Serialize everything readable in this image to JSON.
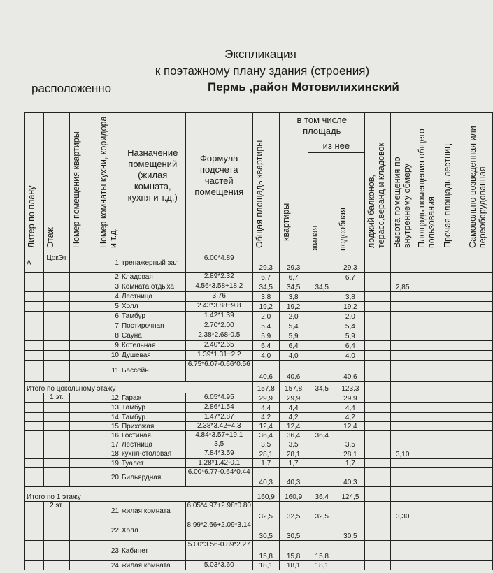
{
  "header": {
    "title": "Экспликация",
    "subtitle": "к поэтажному плану здания (строения)",
    "location_label": "расположенно",
    "location_value": "Пермь ,район Мотовилихинский"
  },
  "columns": {
    "litera": "Литер по плану",
    "floor": "Этаж",
    "apt_no": "Номер помещения квартиры",
    "room_no": "Номер комнаты кухни, коридора и т.д.",
    "purpose": "Назначение помещений (жилая комната, кухня и т.д.)",
    "formula": "Формула подсчета частей помещения",
    "total": "Общая площадь квартиры",
    "incl": "в том числе площадь",
    "apt": "квартиры",
    "of_which": "из нее",
    "living": "жилая",
    "aux": "подсобная",
    "loggia": "лоджий балконов, терасс,веранд и кладовок",
    "height": "Высота помещения по внутреннему обмеру",
    "common": "Площадь помещения общего пользования",
    "other": "Прочая площадь лестниц",
    "self_built": "Самовольно возведенная или переоборудованная"
  },
  "rows": [
    {
      "litera": "А",
      "floor": "ЦокЭт",
      "no": "1",
      "name": "тренажерный зал",
      "formula": "6.00*4.89",
      "total": "29,3",
      "apt": "29,3",
      "living": "",
      "aux": "29,3",
      "height": "",
      "h": 26
    },
    {
      "no": "2",
      "name": "Кладовая",
      "formula": "2.89*2.32",
      "total": "6,7",
      "apt": "6,7",
      "living": "",
      "aux": "6,7",
      "height": "",
      "h": 14
    },
    {
      "no": "3",
      "name": "Комната отдыха",
      "formula": "4.56*3.58+18.2",
      "total": "34,5",
      "apt": "34,5",
      "living": "34,5",
      "aux": "",
      "height": "2,85",
      "h": 14
    },
    {
      "no": "4",
      "name": "Лестница",
      "formula": "3,76",
      "total": "3,8",
      "apt": "3,8",
      "living": "",
      "aux": "3,8",
      "height": "",
      "h": 14
    },
    {
      "no": "5",
      "name": "Холл",
      "formula": "2.43*3.88+9.8",
      "total": "19,2",
      "apt": "19,2",
      "living": "",
      "aux": "19,2",
      "height": "",
      "h": 14
    },
    {
      "no": "6",
      "name": "Тамбур",
      "formula": "1.42*1.39",
      "total": "2,0",
      "apt": "2,0",
      "living": "",
      "aux": "2,0",
      "height": "",
      "h": 14
    },
    {
      "no": "7",
      "name": "Постирочная",
      "formula": "2.70*2.00",
      "total": "5,4",
      "apt": "5,4",
      "living": "",
      "aux": "5,4",
      "height": "",
      "h": 14
    },
    {
      "no": "8",
      "name": "Сауна",
      "formula": "2.38*2.68-0.5",
      "total": "5,9",
      "apt": "5,9",
      "living": "",
      "aux": "5,9",
      "height": "",
      "h": 14
    },
    {
      "no": "9",
      "name": "Котельная",
      "formula": "2.40*2.65",
      "total": "6,4",
      "apt": "6,4",
      "living": "",
      "aux": "6,4",
      "height": "",
      "h": 14
    },
    {
      "no": "10",
      "name": "Душевая",
      "formula": "1.39*1.31+2.2",
      "total": "4,0",
      "apt": "4,0",
      "living": "",
      "aux": "4,0",
      "height": "",
      "h": 14
    },
    {
      "no": "11",
      "name": "Бассейн",
      "formula": "6.75*6.07-0.66*0.56",
      "total": "40,6",
      "apt": "40,6",
      "living": "",
      "aux": "40,6",
      "height": "",
      "h": 30
    },
    {
      "total_label": "Итого по цокольному этажу",
      "total": "157,8",
      "apt": "157,8",
      "living": "34,5",
      "aux": "123,3",
      "h": 17
    },
    {
      "floor": "1 эт.",
      "no": "12",
      "name": "Гараж",
      "formula": "6.05*4.95",
      "total": "29,9",
      "apt": "29,9",
      "living": "",
      "aux": "29,9",
      "height": "",
      "h": 14
    },
    {
      "no": "13",
      "name": "Тамбур",
      "formula": "2.86*1.54",
      "total": "4,4",
      "apt": "4,4",
      "living": "",
      "aux": "4,4",
      "height": "",
      "h": 14
    },
    {
      "no": "14",
      "name": "Тамбур",
      "formula": "1.47*2.87",
      "total": "4,2",
      "apt": "4,2",
      "living": "",
      "aux": "4,2",
      "height": "",
      "h": 13
    },
    {
      "no": "15",
      "name": "Прихожая",
      "formula": "2.38*3.42+4.3",
      "total": "12,4",
      "apt": "12,4",
      "living": "",
      "aux": "12,4",
      "height": "",
      "h": 13
    },
    {
      "no": "16",
      "name": "Гостиная",
      "formula": "4.84*3.57+19.1",
      "total": "36,4",
      "apt": "36,4",
      "living": "36,4",
      "aux": "",
      "height": "",
      "h": 13
    },
    {
      "no": "17",
      "name": "Лестница",
      "formula": "3,5",
      "total": "3,5",
      "apt": "3,5",
      "living": "",
      "aux": "3,5",
      "height": "",
      "h": 13
    },
    {
      "no": "18",
      "name": "кухня-столовая",
      "formula": "7.84*3.59",
      "total": "28,1",
      "apt": "28,1",
      "living": "",
      "aux": "28,1",
      "height": "3,10",
      "h": 14
    },
    {
      "no": "19",
      "name": "Туалет",
      "formula": "1.28*1.42-0.1",
      "total": "1,7",
      "apt": "1,7",
      "living": "",
      "aux": "1,7",
      "height": "",
      "h": 13
    },
    {
      "no": "20",
      "name": "Бильярдная",
      "formula": "6.00*6.77-0.64*0.44",
      "total": "40,3",
      "apt": "40,3",
      "living": "",
      "aux": "40,3",
      "height": "",
      "h": 27
    },
    {
      "total_label": "Итого по 1 этажу",
      "total": "160,9",
      "apt": "160,9",
      "living": "36,4",
      "aux": "124,5",
      "h": 21
    },
    {
      "floor": "2 эт.",
      "no": "21",
      "name": "жилая комната",
      "formula": "6.05*4.97+2.98*0.80",
      "total": "32,5",
      "apt": "32,5",
      "living": "32,5",
      "aux": "",
      "height": "3,30",
      "h": 28
    },
    {
      "no": "22",
      "name": "Холл",
      "formula": "8.99*2.66+2.09*3.14",
      "total": "30,5",
      "apt": "30,5",
      "living": "",
      "aux": "30,5",
      "height": "",
      "h": 28
    },
    {
      "no": "23",
      "name": "Кабинет",
      "formula": "5.00*3.56-0.89*2.27",
      "total": "15,8",
      "apt": "15,8",
      "living": "15,8",
      "aux": "",
      "height": "",
      "h": 29
    },
    {
      "no": "24",
      "name": "жилая комната",
      "formula": "5.03*3.60",
      "total": "18,1",
      "apt": "18,1",
      "living": "18,1",
      "aux": "",
      "height": "",
      "h": 13
    }
  ]
}
